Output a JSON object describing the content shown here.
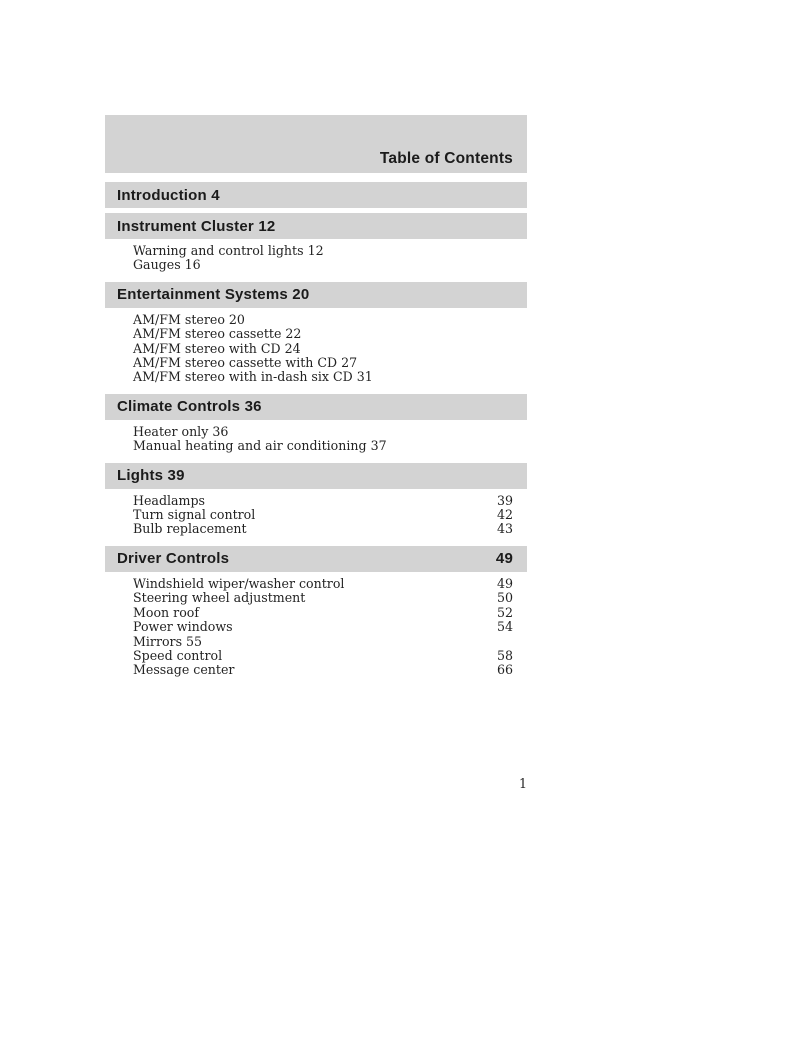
{
  "title": "Table of Contents",
  "page": {
    "number": "1"
  },
  "colors": {
    "bar_gray": "#d3d3d3",
    "header_text": "#1b1b1b",
    "body_text": "#232323"
  },
  "sections": [
    {
      "id": "introduction",
      "label": "Introduction 4",
      "page": "",
      "items": []
    },
    {
      "id": "instrument-cluster",
      "label": "Instrument Cluster 12",
      "page": "",
      "items": [
        {
          "text": "Warning and control lights 12",
          "page": ""
        },
        {
          "text": "Gauges 16",
          "page": ""
        }
      ]
    },
    {
      "id": "entertainment-systems",
      "label": "Entertainment Systems 20",
      "page": "",
      "items": [
        {
          "text": "AM/FM stereo 20",
          "page": ""
        },
        {
          "text": "AM/FM stereo cassette 22",
          "page": ""
        },
        {
          "text": "AM/FM stereo with CD 24",
          "page": ""
        },
        {
          "text": "AM/FM stereo cassette with CD 27",
          "page": ""
        },
        {
          "text": "AM/FM stereo with in-dash six CD 31",
          "page": ""
        }
      ]
    },
    {
      "id": "climate-controls",
      "label": "Climate Controls 36",
      "page": "",
      "items": [
        {
          "text": "Heater only 36",
          "page": ""
        },
        {
          "text": "Manual heating and air conditioning 37",
          "page": ""
        }
      ]
    },
    {
      "id": "lights",
      "label": "Lights 39",
      "page": "",
      "items": [
        {
          "text": "Headlamps",
          "page": "39"
        },
        {
          "text": "Turn signal control",
          "page": "42"
        },
        {
          "text": "Bulb replacement",
          "page": "43"
        }
      ]
    },
    {
      "id": "driver-controls",
      "label": "Driver Controls",
      "page": "49",
      "items": [
        {
          "text": "Windshield wiper/washer control",
          "page": "49"
        },
        {
          "text": "Steering wheel adjustment",
          "page": "50"
        },
        {
          "text": "Moon roof",
          "page": "52"
        },
        {
          "text": "Power windows",
          "page": "54"
        },
        {
          "text": "Mirrors 55",
          "page": ""
        },
        {
          "text": "Speed control",
          "page": "58"
        },
        {
          "text": "Message center",
          "page": "66"
        }
      ]
    }
  ]
}
